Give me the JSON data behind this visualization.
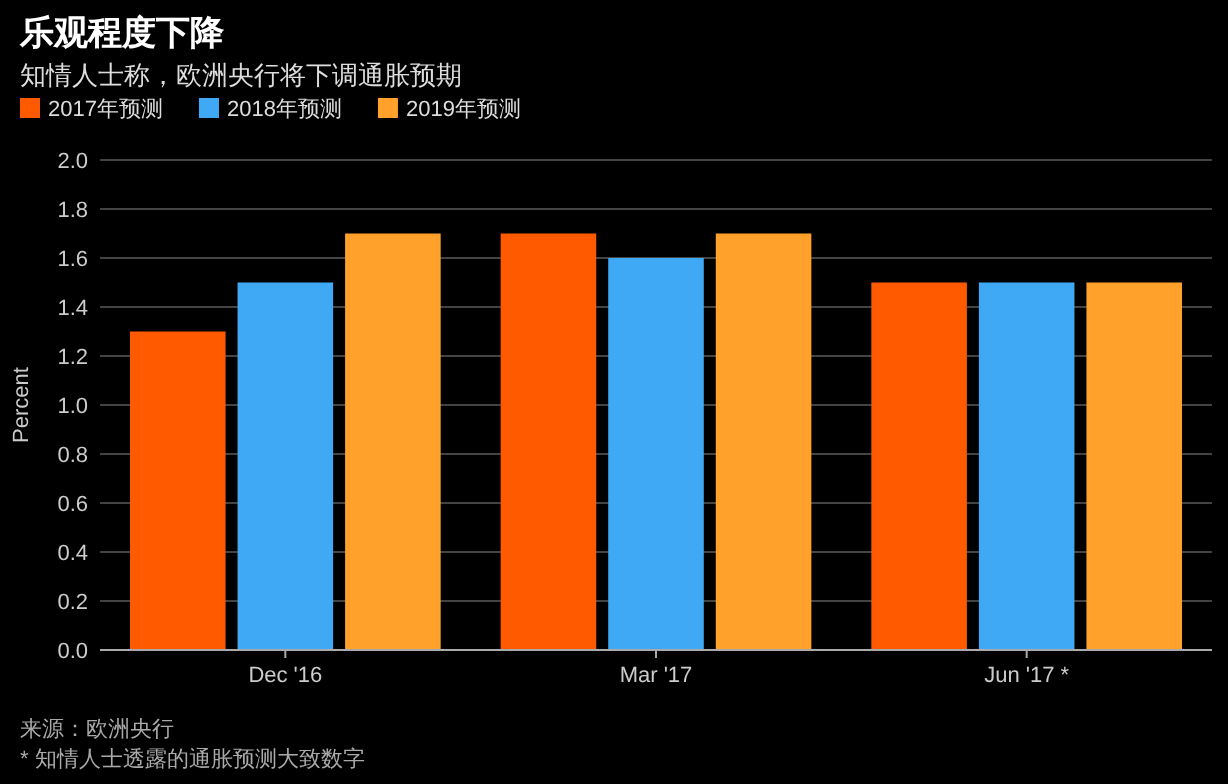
{
  "chart_data": {
    "type": "bar",
    "title": "乐观程度下降",
    "subtitle": "知情人士称，欧洲央行将下调通胀预期",
    "ylabel": "Percent",
    "categories": [
      "Dec '16",
      "Mar '17",
      "Jun '17 *"
    ],
    "series": [
      {
        "name": "2017年预测",
        "color": "#ff5a00",
        "values": [
          1.3,
          1.7,
          1.5
        ]
      },
      {
        "name": "2018年预测",
        "color": "#3fa9f5",
        "values": [
          1.5,
          1.6,
          1.5
        ]
      },
      {
        "name": "2019年预测",
        "color": "#ffa12b",
        "values": [
          1.7,
          1.7,
          1.5
        ]
      }
    ],
    "ylim": [
      0,
      2
    ],
    "yticks": [
      {
        "value": 0,
        "label": "0.0"
      },
      0.2,
      0.4,
      0.6,
      0.8,
      {
        "value": 1,
        "label": "1.0"
      },
      1.2,
      1.4,
      1.6,
      1.8,
      {
        "value": 2,
        "label": "2.0"
      }
    ],
    "grid": "y",
    "legend": "top left",
    "annotations": [
      "来源：欧洲央行",
      "* 知情人士透露的通胀预测大致数字"
    ]
  }
}
